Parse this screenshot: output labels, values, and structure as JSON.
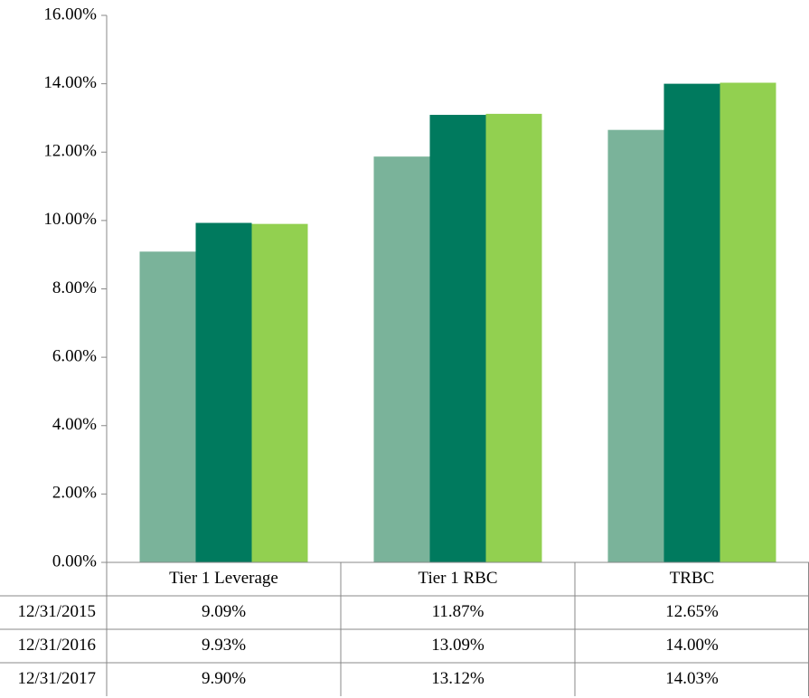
{
  "chart_data": {
    "type": "bar",
    "categories": [
      "Tier 1 Leverage",
      "Tier 1 RBC",
      "TRBC"
    ],
    "series": [
      {
        "name": "12/31/2015",
        "color": "#7ab39a",
        "values": [
          9.09,
          11.87,
          12.65
        ],
        "value_labels": [
          "9.09%",
          "11.87%",
          "12.65%"
        ]
      },
      {
        "name": "12/31/2016",
        "color": "#007a5e",
        "values": [
          9.93,
          13.09,
          14.0
        ],
        "value_labels": [
          "9.93%",
          "13.09%",
          "14.00%"
        ]
      },
      {
        "name": "12/31/2017",
        "color": "#92d050",
        "values": [
          9.9,
          13.12,
          14.03
        ],
        "value_labels": [
          "9.90%",
          "13.12%",
          "14.03%"
        ]
      }
    ],
    "ylim": [
      0,
      16
    ],
    "yticks": [
      {
        "value": 0,
        "label": "0.00%"
      },
      {
        "value": 2,
        "label": "2.00%"
      },
      {
        "value": 4,
        "label": "4.00%"
      },
      {
        "value": 6,
        "label": "6.00%"
      },
      {
        "value": 8,
        "label": "8.00%"
      },
      {
        "value": 10,
        "label": "10.00%"
      },
      {
        "value": 12,
        "label": "12.00%"
      },
      {
        "value": 14,
        "label": "14.00%"
      },
      {
        "value": 16,
        "label": "16.00%"
      }
    ]
  }
}
